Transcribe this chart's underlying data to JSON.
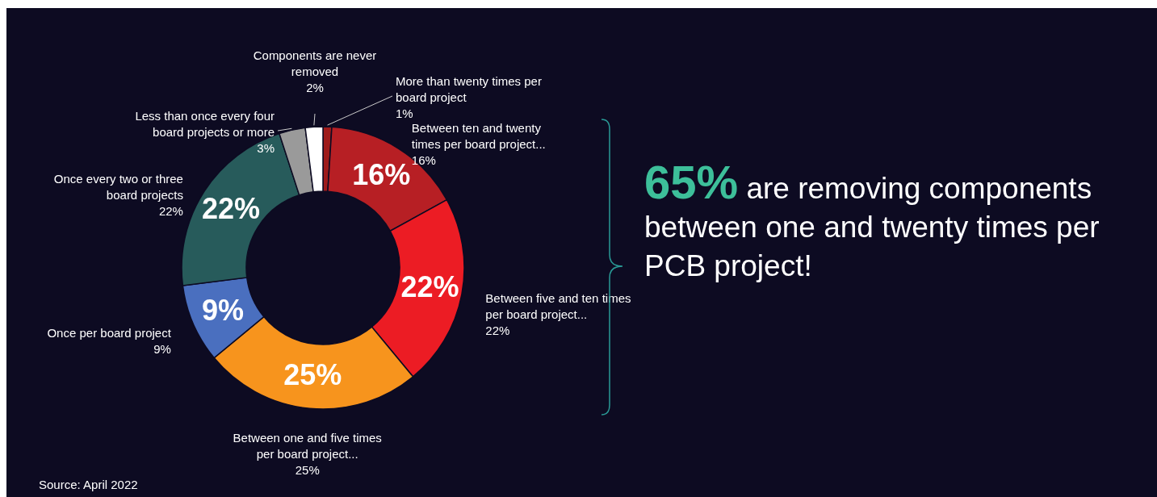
{
  "chart_data": {
    "type": "donut",
    "categories": [
      "More than twenty times per board project",
      "Between ten and twenty times per board project...",
      "Between five and ten times per board project...",
      "Between one and five times per board project...",
      "Once per board project",
      "Once every two or three board projects",
      "Less than once every four board projects or more",
      "Components are never removed"
    ],
    "values": [
      1,
      16,
      22,
      25,
      9,
      22,
      3,
      2
    ],
    "colors": [
      "#9e1b1b",
      "#b71f24",
      "#ec1c24",
      "#f7941d",
      "#4a6fbf",
      "#275b5b",
      "#9a9a9a",
      "#ffffff"
    ],
    "value_labels": [
      "1%",
      "16%",
      "22%",
      "25%",
      "9%",
      "22%",
      "3%",
      "2%"
    ],
    "annotations": [
      "65%",
      "are removing components between one and twenty times per PCB project!",
      "Source: April 2022"
    ]
  }
}
